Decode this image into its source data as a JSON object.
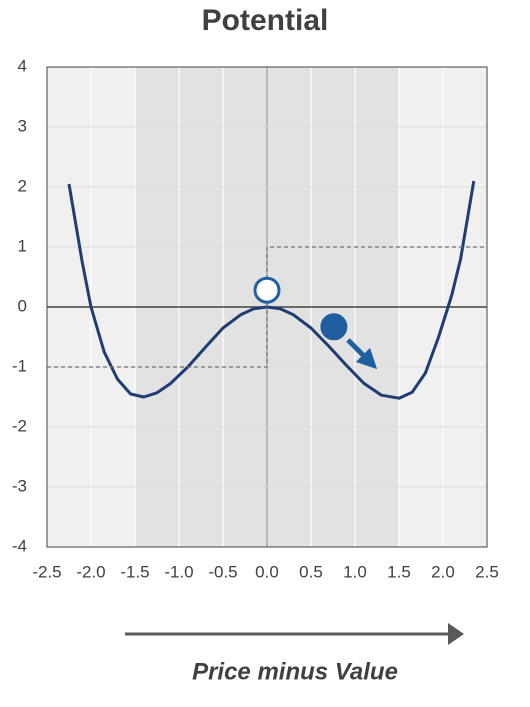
{
  "chart_data": {
    "type": "line",
    "title": "Potential",
    "x_label": "Price minus Value",
    "xlim": [
      -2.5,
      2.5
    ],
    "ylim": [
      -4,
      4
    ],
    "xticks": [
      -2.5,
      {
        "value": -2.0,
        "label": "-2.0"
      },
      -1.5,
      {
        "value": -1.0,
        "label": "-1.0"
      },
      -0.5,
      {
        "value": 0,
        "label": "0.0"
      },
      0.5,
      {
        "value": 1.0,
        "label": "1.0"
      },
      1.5,
      {
        "value": 2.0,
        "label": "2.0"
      },
      2.5
    ],
    "yticks": [
      -4,
      -3,
      -2,
      -1,
      0,
      1,
      2,
      3,
      4
    ],
    "grid": true,
    "shaded_region": [
      -1.5,
      1.5
    ],
    "series": [
      {
        "color": "#1f3d73",
        "style": "solid",
        "x": [
          -2.25,
          -2.1,
          -2.0,
          -1.85,
          -1.7,
          -1.55,
          -1.4,
          -1.25,
          -1.1,
          -0.9,
          -0.7,
          -0.5,
          -0.3,
          -0.15,
          0,
          0.15,
          0.3,
          0.5,
          0.7,
          0.9,
          1.1,
          1.3,
          1.5,
          1.65,
          1.8,
          1.95,
          2.1,
          2.2,
          2.35
        ],
        "values": [
          2.05,
          0.75,
          0.0,
          -0.75,
          -1.2,
          -1.45,
          -1.5,
          -1.43,
          -1.28,
          -1.0,
          -0.67,
          -0.35,
          -0.13,
          -0.03,
          0,
          -0.03,
          -0.13,
          -0.35,
          -0.65,
          -0.97,
          -1.27,
          -1.47,
          -1.52,
          -1.42,
          -1.1,
          -0.5,
          0.2,
          0.8,
          2.1
        ]
      },
      {
        "color": "#707070",
        "style": "dashed",
        "x": [
          -2.5,
          0,
          0,
          2.5
        ],
        "values": [
          -1,
          -1,
          1,
          1
        ]
      }
    ],
    "markers": [
      {
        "x": 0,
        "y": 0.28,
        "fill": "#ffffff",
        "stroke": "#1f5fa0"
      },
      {
        "x": 0.76,
        "y": -0.33,
        "fill": "#1f5fa0",
        "stroke": "#1f5fa0"
      }
    ]
  }
}
